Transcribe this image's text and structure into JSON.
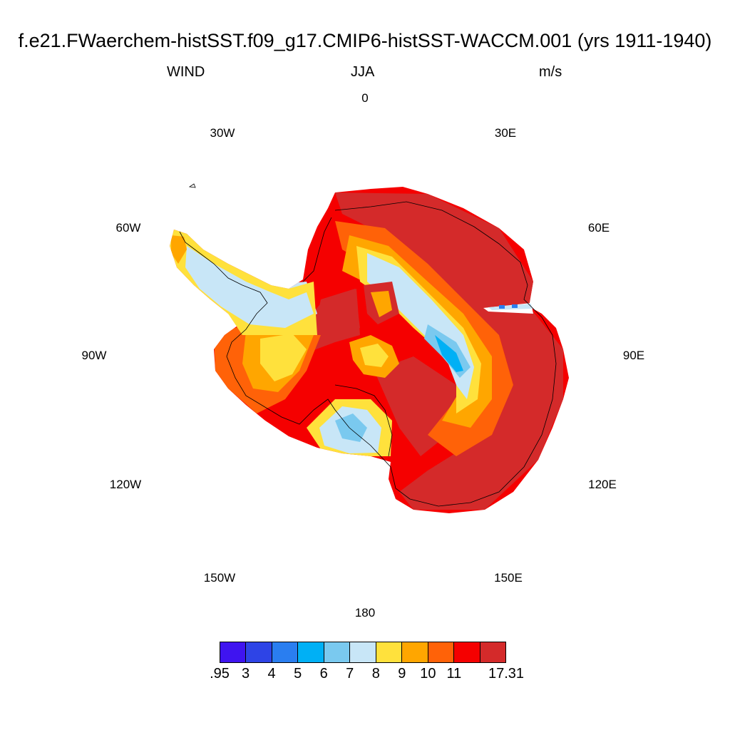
{
  "title": "f.e21.FWaerchem-histSST.f09_g17.CMIP6-histSST-WACCM.001 (yrs 1911-1940)",
  "subtitle_left": "WIND",
  "subtitle_center": "JJA",
  "subtitle_right": "m/s",
  "longitude_labels": {
    "lon_0": "0",
    "lon_30e": "30E",
    "lon_60e": "60E",
    "lon_90e": "90E",
    "lon_120e": "120E",
    "lon_150e": "150E",
    "lon_180": "180",
    "lon_150w": "150W",
    "lon_120w": "120W",
    "lon_90w": "90W",
    "lon_60w": "60W",
    "lon_30w": "30W"
  },
  "colorbar": {
    "colors": [
      "#3f14f0",
      "#2e44e6",
      "#2a7ef0",
      "#00b0f5",
      "#7ac9ef",
      "#c8e6f7",
      "#ffe13c",
      "#ffa600",
      "#ff6208",
      "#f50000",
      "#d42a2a"
    ],
    "labels": [
      ".95",
      "3",
      "4",
      "5",
      "6",
      "7",
      "8",
      "9",
      "10",
      "11",
      "17.31"
    ]
  }
}
